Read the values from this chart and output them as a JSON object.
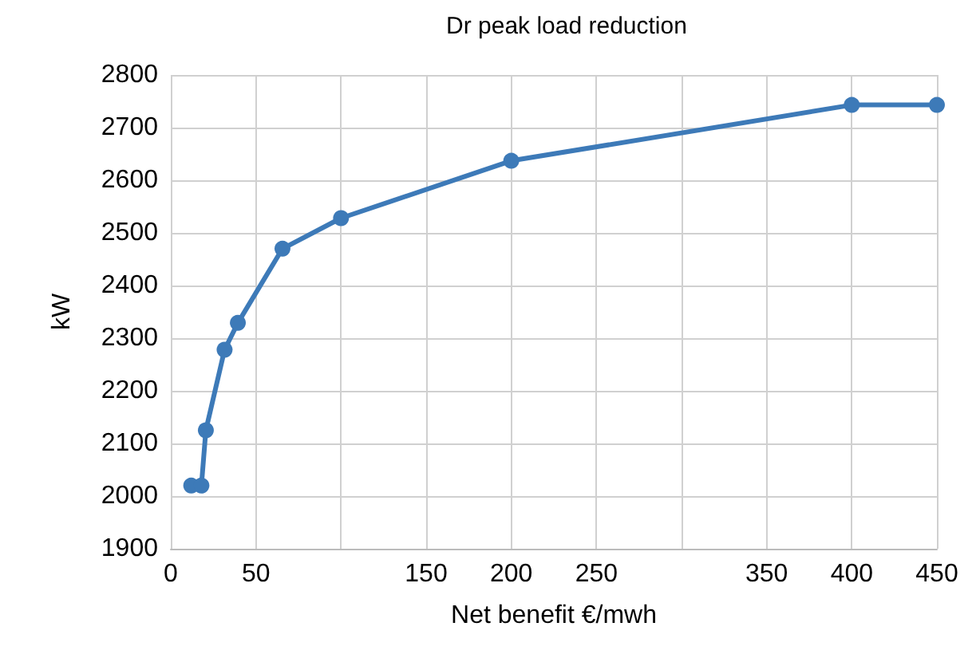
{
  "chart_data": {
    "type": "line",
    "title": "Dr peak load reduction",
    "xlabel": "Net benefit €/mwh",
    "ylabel": "kW",
    "x": [
      12,
      18,
      20.6,
      31.6,
      39.4,
      65.6,
      100,
      200,
      400,
      450
    ],
    "series": [
      {
        "color": "#3d7ab8",
        "values": [
          2020,
          2020,
          2125,
          2278,
          2329,
          2470,
          2528,
          2637,
          2743,
          2743
        ]
      }
    ],
    "xlim": [
      0,
      450
    ],
    "xticks": [
      0,
      50,
      {
        "value": 100,
        "label": null
      },
      150,
      200,
      250,
      {
        "value": 300,
        "label": null
      },
      350,
      400,
      450
    ],
    "ylim": [
      1900,
      2800
    ],
    "yticks": [
      1900,
      2000,
      2100,
      2200,
      2300,
      2400,
      2500,
      2600,
      2700,
      2800
    ],
    "grid": true,
    "marker": "circle",
    "line_style": "solid"
  }
}
